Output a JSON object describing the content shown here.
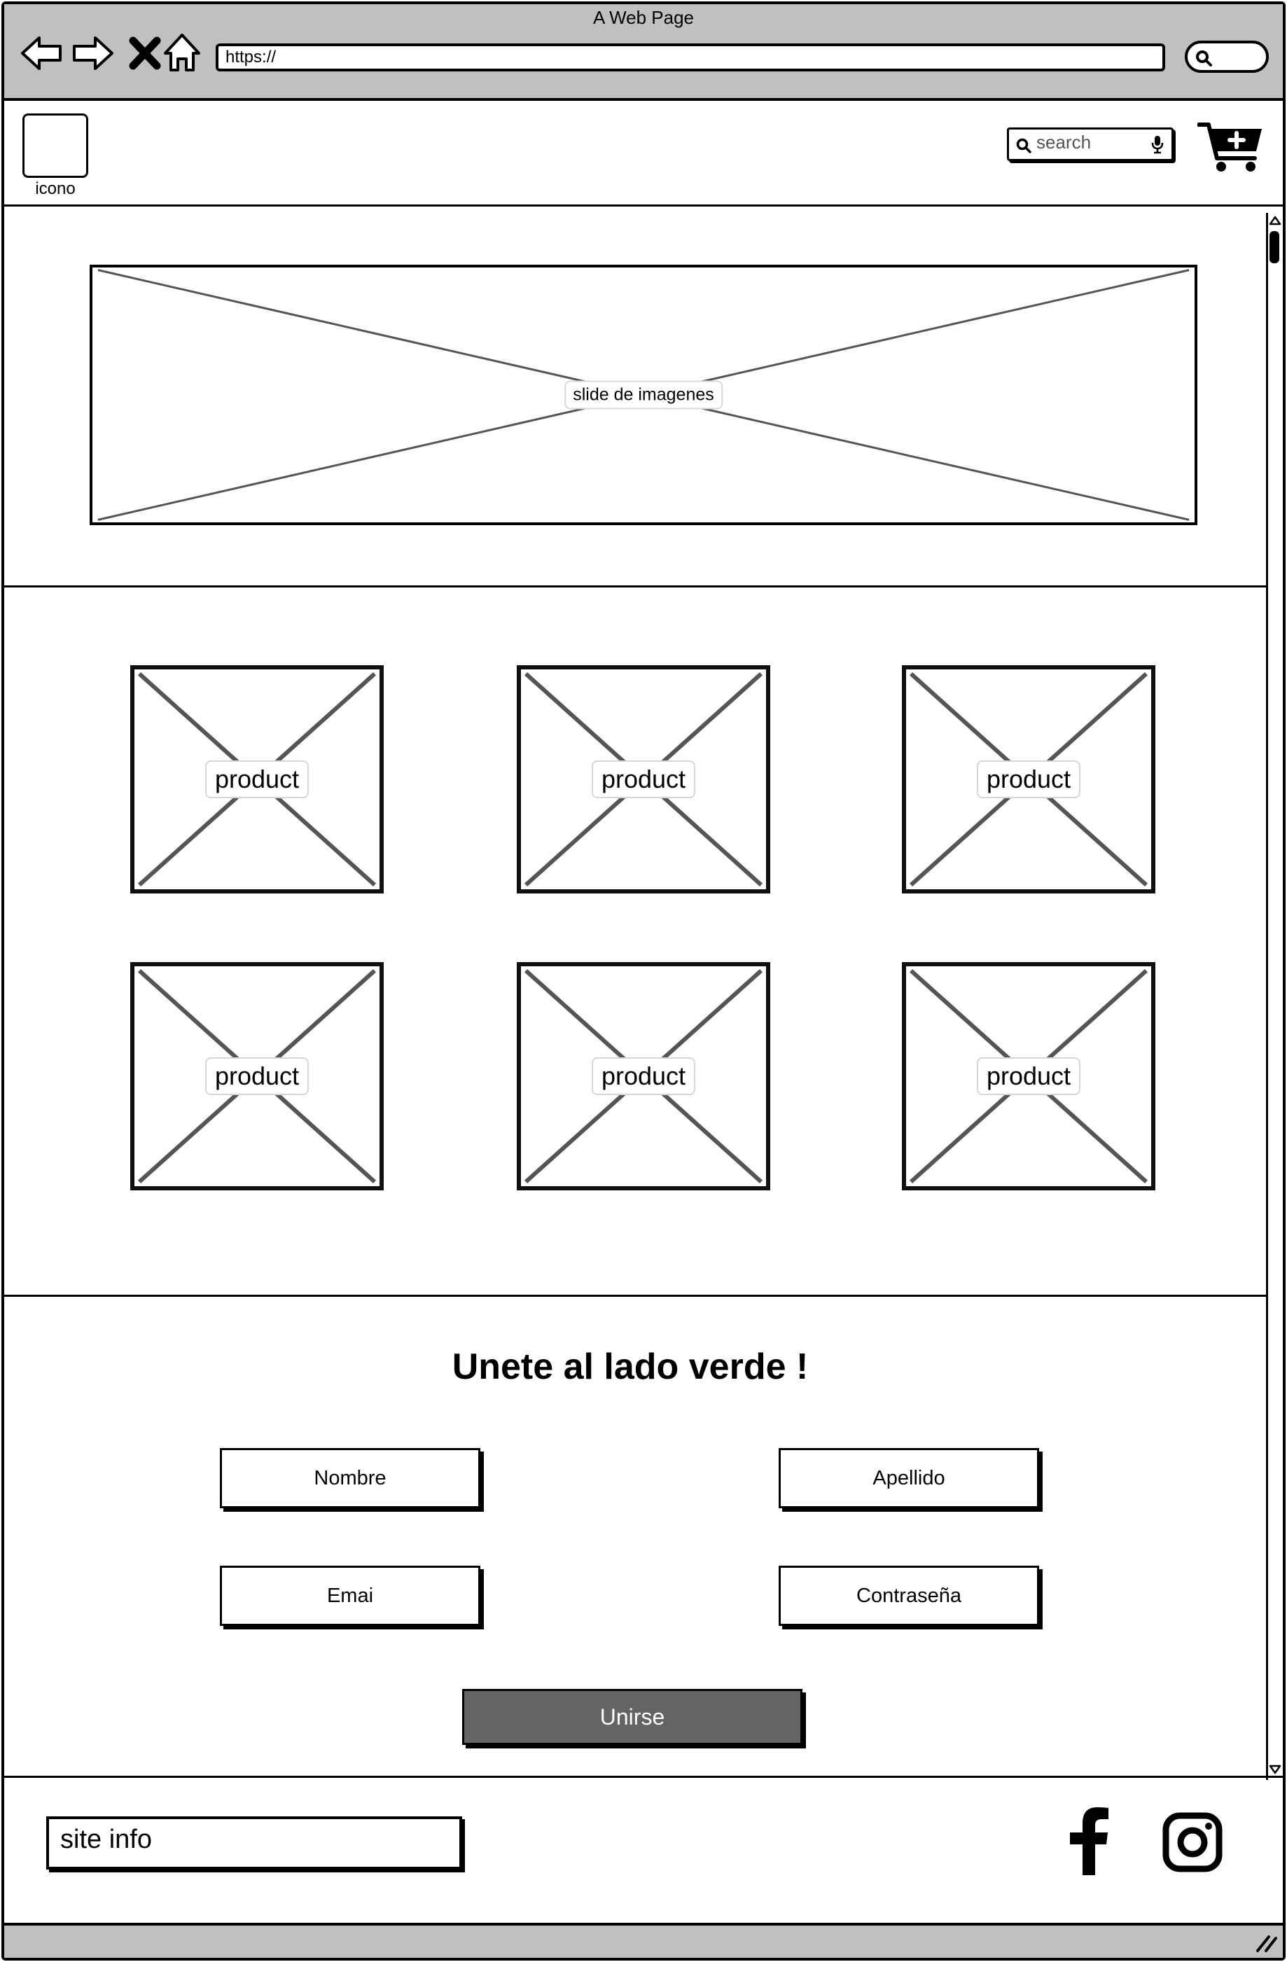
{
  "browser": {
    "title": "A Web Page",
    "url": "https://"
  },
  "header": {
    "logo_label": "icono",
    "search_placeholder": "search"
  },
  "slider": {
    "caption": "slide de imagenes"
  },
  "products": {
    "items": [
      {
        "label": "product"
      },
      {
        "label": "product"
      },
      {
        "label": "product"
      },
      {
        "label": "product"
      },
      {
        "label": "product"
      },
      {
        "label": "product"
      }
    ]
  },
  "signup": {
    "title": "Unete al lado verde !",
    "fields": {
      "first_name": "Nombre",
      "last_name": "Apellido",
      "email": "Emai",
      "password": "Contraseña"
    },
    "submit_label": "Unirse"
  },
  "footer": {
    "site_info": "site info"
  },
  "icons": {
    "back": "back-icon",
    "forward": "forward-icon",
    "stop": "close-icon",
    "home": "home-icon",
    "search": "search-icon",
    "mic": "microphone-icon",
    "cart": "shopping-cart-icon",
    "facebook": "facebook-icon",
    "instagram": "instagram-icon"
  }
}
